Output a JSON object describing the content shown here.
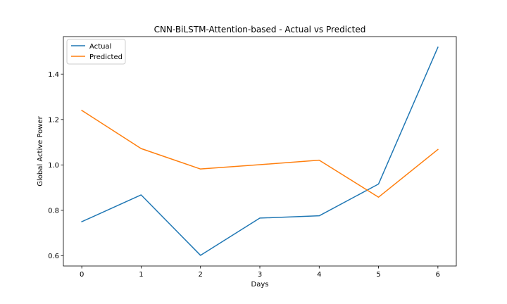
{
  "chart_data": {
    "type": "line",
    "title": "CNN-BiLSTM-Attention-based - Actual vs Predicted",
    "xlabel": "Days",
    "ylabel": "Global Active Power",
    "x": [
      0,
      1,
      2,
      3,
      4,
      5,
      6
    ],
    "xticks": [
      "0",
      "1",
      "2",
      "3",
      "4",
      "5",
      "6"
    ],
    "yticks": [
      "0.6",
      "0.8",
      "1.0",
      "1.2",
      "1.4"
    ],
    "xlim": [
      -0.31,
      6.31
    ],
    "ylim": [
      0.555,
      1.565
    ],
    "grid": false,
    "legend_position": "top-left",
    "series": [
      {
        "name": "Actual",
        "color": "#1f77b4",
        "values": [
          0.75,
          0.868,
          0.602,
          0.766,
          0.776,
          0.916,
          1.518
        ]
      },
      {
        "name": "Predicted",
        "color": "#ff7f0e",
        "values": [
          1.24,
          1.072,
          0.982,
          1.001,
          1.021,
          0.858,
          1.068
        ]
      }
    ]
  }
}
